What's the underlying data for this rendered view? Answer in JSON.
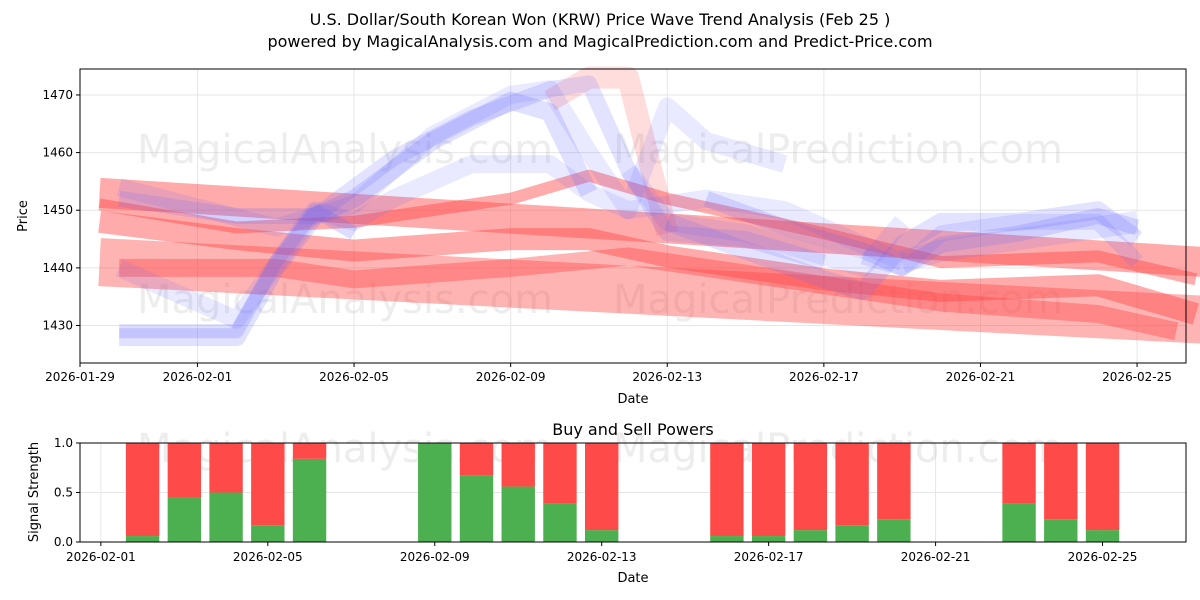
{
  "header": {
    "title_line1": "U.S. Dollar/South Korean Won (KRW) Price Wave Trend Analysis (Feb 25 )",
    "title_line2": "powered by MagicalAnalysis.com and MagicalPrediction.com and Predict-Price.com"
  },
  "watermarks": [
    "MagicalAnalysis.com",
    "MagicalPrediction.com"
  ],
  "colors": {
    "blue": "#6666ff",
    "red": "#ff4444",
    "buy": "#4caf50",
    "sell": "#ff4a4a",
    "grid": "#e6e6e6"
  },
  "chart_data": [
    {
      "type": "line",
      "name": "price-wave",
      "title": "",
      "xlabel": "Date",
      "ylabel": "Price",
      "xlim": [
        "2026-01-29T00:00",
        "2026-02-26T06:00"
      ],
      "ylim": [
        1423.5,
        1474.5
      ],
      "x_ticks": [
        "2026-01-29",
        "2026-02-01",
        "2026-02-05",
        "2026-02-09",
        "2026-02-13",
        "2026-02-17",
        "2026-02-21",
        "2026-02-25"
      ],
      "y_ticks": [
        1430,
        1440,
        1450,
        1460,
        1470
      ],
      "grid": true,
      "blue_series": [
        {
          "x": [
            "2026-01-30",
            "2026-02-01",
            "2026-02-02",
            "2026-02-03",
            "2026-02-04",
            "2026-02-05"
          ],
          "y": [
            1429,
            1429,
            1429,
            1441,
            1450,
            1446
          ],
          "width": 14,
          "opacity": 0.22
        },
        {
          "x": [
            "2026-01-30",
            "2026-02-02",
            "2026-02-03",
            "2026-02-04",
            "2026-02-05",
            "2026-02-07",
            "2026-02-09",
            "2026-02-10",
            "2026-02-11"
          ],
          "y": [
            1428,
            1428,
            1440,
            1449,
            1452,
            1462,
            1469,
            1467,
            1453
          ],
          "width": 18,
          "opacity": 0.2
        },
        {
          "x": [
            "2026-01-30",
            "2026-02-02",
            "2026-02-04",
            "2026-02-06",
            "2026-02-08",
            "2026-02-10",
            "2026-02-11",
            "2026-02-12",
            "2026-02-13",
            "2026-02-15",
            "2026-02-17"
          ],
          "y": [
            1452,
            1449,
            1449,
            1459,
            1466,
            1471,
            1472,
            1457,
            1446,
            1445,
            1441
          ],
          "width": 16,
          "opacity": 0.18
        },
        {
          "x": [
            "2026-01-30",
            "2026-02-03",
            "2026-02-05",
            "2026-02-07",
            "2026-02-09",
            "2026-02-10",
            "2026-02-11",
            "2026-02-12",
            "2026-02-13",
            "2026-02-14",
            "2026-02-16"
          ],
          "y": [
            1454,
            1447,
            1451,
            1463,
            1470,
            1471,
            1460,
            1450,
            1468,
            1462,
            1458
          ],
          "width": 18,
          "opacity": 0.14
        },
        {
          "x": [
            "2026-01-30",
            "2026-02-02",
            "2026-02-04",
            "2026-02-05",
            "2026-02-06",
            "2026-02-08",
            "2026-02-10",
            "2026-02-11",
            "2026-02-12",
            "2026-02-14",
            "2026-02-16",
            "2026-02-17",
            "2026-02-19"
          ],
          "y": [
            1440,
            1431,
            1450,
            1448,
            1452,
            1458,
            1458,
            1453,
            1450,
            1452,
            1450,
            1447,
            1441
          ],
          "width": 18,
          "opacity": 0.14
        },
        {
          "x": [
            "2026-02-12",
            "2026-02-13",
            "2026-02-15",
            "2026-02-17",
            "2026-02-18",
            "2026-02-19"
          ],
          "y": [
            1457,
            1448,
            1446,
            1442,
            1440,
            1448
          ],
          "width": 18,
          "opacity": 0.14
        },
        {
          "x": [
            "2026-02-13",
            "2026-02-15",
            "2026-02-17",
            "2026-02-18",
            "2026-02-19",
            "2026-02-20",
            "2026-02-22",
            "2026-02-24",
            "2026-02-25"
          ],
          "y": [
            1448,
            1443,
            1438,
            1436,
            1444,
            1448,
            1448,
            1450,
            1445
          ],
          "width": 18,
          "opacity": 0.18
        },
        {
          "x": [
            "2026-02-14",
            "2026-02-16",
            "2026-02-18",
            "2026-02-19",
            "2026-02-20",
            "2026-02-22",
            "2026-02-24",
            "2026-02-25"
          ],
          "y": [
            1452,
            1447,
            1443,
            1440,
            1444,
            1446,
            1449,
            1447
          ],
          "width": 16,
          "opacity": 0.2
        },
        {
          "x": [
            "2026-02-18",
            "2026-02-19",
            "2026-02-20",
            "2026-02-22",
            "2026-02-24",
            "2026-02-25"
          ],
          "y": [
            1442,
            1440,
            1446,
            1448,
            1448,
            1441
          ],
          "width": 16,
          "opacity": 0.16
        },
        {
          "x": [
            "2026-02-19",
            "2026-02-20",
            "2026-02-23",
            "2026-02-25"
          ],
          "y": [
            1441,
            1443,
            1446,
            1448
          ],
          "width": 22,
          "opacity": 0.14
        }
      ],
      "red_series": [
        {
          "x": [
            "2026-01-29T12:00",
            "2026-02-26T18:00"
          ],
          "y": [
            1453,
            1441
          ],
          "width": 30,
          "opacity": 0.45
        },
        {
          "x": [
            "2026-01-29T12:00",
            "2026-02-26T18:00"
          ],
          "y": [
            1441,
            1431
          ],
          "width": 48,
          "opacity": 0.4
        },
        {
          "x": [
            "2026-01-29T12:00",
            "2026-02-02",
            "2026-02-05",
            "2026-02-09",
            "2026-02-11",
            "2026-02-13",
            "2026-02-17",
            "2026-02-20",
            "2026-02-24",
            "2026-02-26T12:00"
          ],
          "y": [
            1448,
            1445,
            1443,
            1445,
            1445,
            1442,
            1438,
            1436,
            1437,
            1432
          ],
          "width": 22,
          "opacity": 0.45
        },
        {
          "x": [
            "2026-01-29T12:00",
            "2026-02-02",
            "2026-02-05",
            "2026-02-09",
            "2026-02-11",
            "2026-02-13",
            "2026-02-17",
            "2026-02-20",
            "2026-02-24",
            "2026-02-26T12:00"
          ],
          "y": [
            1451,
            1447,
            1448,
            1452,
            1456,
            1452,
            1446,
            1441,
            1442,
            1438
          ],
          "width": 12,
          "opacity": 0.45
        },
        {
          "x": [
            "2026-02-10",
            "2026-02-11",
            "2026-02-12",
            "2026-02-13"
          ],
          "y": [
            1469,
            1473,
            1473,
            1446
          ],
          "width": 22,
          "opacity": 0.18
        },
        {
          "x": [
            "2026-01-30",
            "2026-02-03",
            "2026-02-05",
            "2026-02-09",
            "2026-02-12",
            "2026-02-16",
            "2026-02-20",
            "2026-02-24",
            "2026-02-26"
          ],
          "y": [
            1440,
            1440,
            1438,
            1440,
            1442,
            1438,
            1434,
            1432,
            1429
          ],
          "width": 18,
          "opacity": 0.4
        }
      ]
    },
    {
      "type": "bar",
      "name": "buy-sell-powers",
      "title": "Buy and Sell Powers",
      "xlabel": "Date",
      "ylabel": "Signal Strength",
      "xlim": [
        "2026-01-31T12:00",
        "2026-02-27T00:00"
      ],
      "ylim": [
        0,
        1.0
      ],
      "x_ticks": [
        "2026-02-01",
        "2026-02-05",
        "2026-02-09",
        "2026-02-13",
        "2026-02-17",
        "2026-02-21",
        "2026-02-25"
      ],
      "y_ticks": [
        "0.0",
        "0.5",
        "1.0"
      ],
      "grid": true,
      "dates": [
        "2026-02-02",
        "2026-02-03",
        "2026-02-04",
        "2026-02-05",
        "2026-02-06",
        "2026-02-09",
        "2026-02-10",
        "2026-02-11",
        "2026-02-12",
        "2026-02-13",
        "2026-02-16",
        "2026-02-17",
        "2026-02-18",
        "2026-02-19",
        "2026-02-20",
        "2026-02-23",
        "2026-02-24",
        "2026-02-25"
      ],
      "series": [
        {
          "name": "Buy",
          "values": [
            0.06,
            0.45,
            0.5,
            0.17,
            0.84,
            1.0,
            0.67,
            0.56,
            0.39,
            0.12,
            0.06,
            0.06,
            0.12,
            0.17,
            0.23,
            0.39,
            0.23,
            0.12
          ]
        },
        {
          "name": "Sell",
          "values": [
            0.94,
            0.55,
            0.5,
            0.83,
            0.16,
            0.0,
            0.33,
            0.44,
            0.61,
            0.88,
            0.94,
            0.94,
            0.88,
            0.83,
            0.77,
            0.61,
            0.77,
            0.88
          ]
        }
      ]
    }
  ]
}
